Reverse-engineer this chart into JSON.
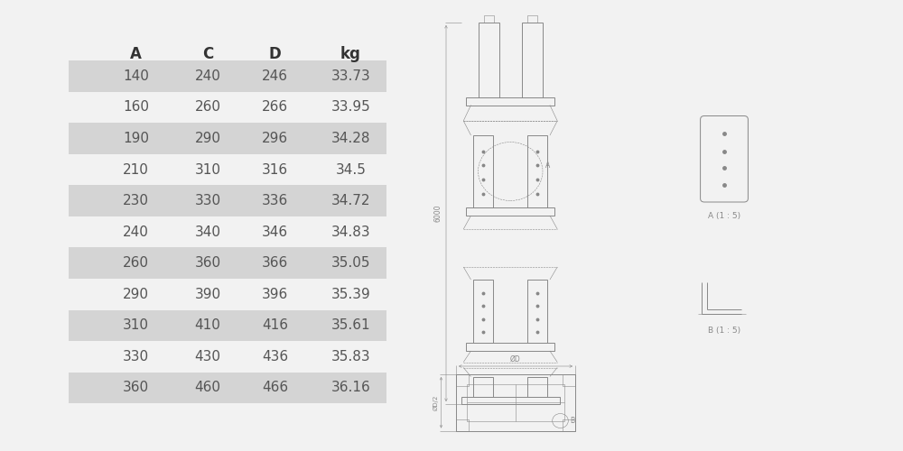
{
  "table_headers": [
    "A",
    "C",
    "D",
    "kg"
  ],
  "table_rows": [
    [
      "140",
      "240",
      "246",
      "33.73"
    ],
    [
      "160",
      "260",
      "266",
      "33.95"
    ],
    [
      "190",
      "290",
      "296",
      "34.28"
    ],
    [
      "210",
      "310",
      "316",
      "34.5"
    ],
    [
      "230",
      "330",
      "336",
      "34.72"
    ],
    [
      "240",
      "340",
      "346",
      "34.83"
    ],
    [
      "260",
      "360",
      "366",
      "35.05"
    ],
    [
      "290",
      "390",
      "396",
      "35.39"
    ],
    [
      "310",
      "410",
      "416",
      "35.61"
    ],
    [
      "330",
      "430",
      "436",
      "35.83"
    ],
    [
      "360",
      "460",
      "466",
      "36.16"
    ]
  ],
  "shaded_rows": [
    0,
    2,
    4,
    6,
    8,
    10
  ],
  "row_bg_color": "#d4d4d4",
  "text_color": "#555555",
  "header_color": "#333333",
  "bg_color": "#f2f2f2",
  "line_color": "#888888"
}
